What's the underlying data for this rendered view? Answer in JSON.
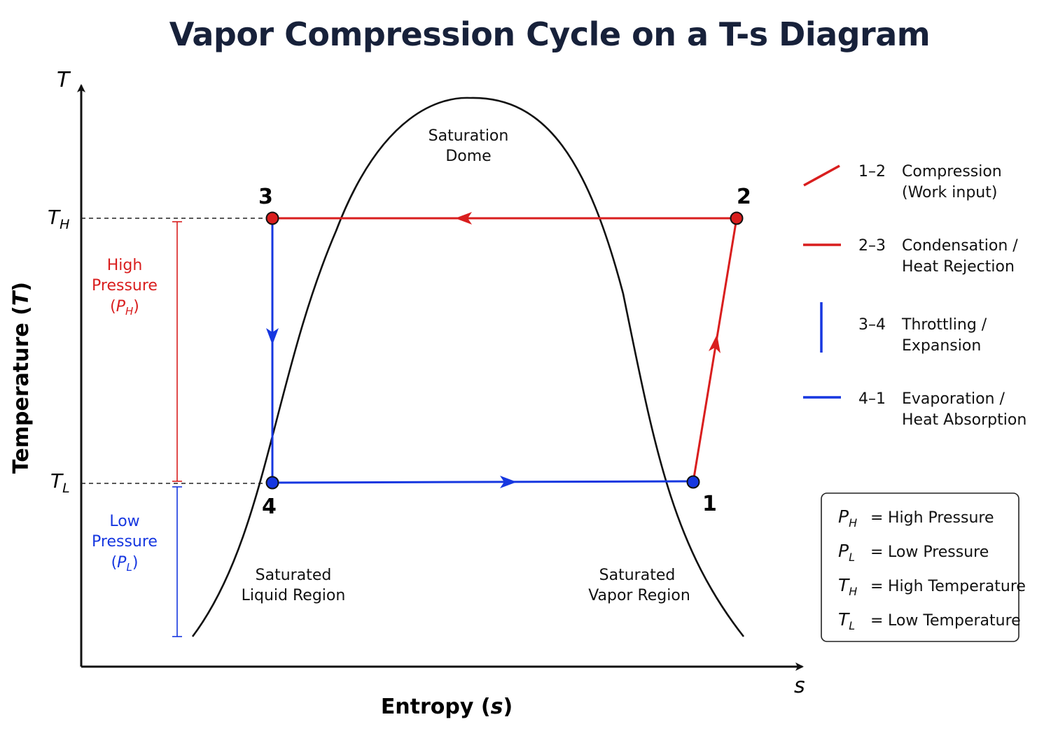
{
  "title": "Vapor Compression Cycle on a T-s Diagram",
  "axes": {
    "y_symbol": "T",
    "x_symbol": "s",
    "y_label": "Temperature",
    "y_label_var": "T",
    "x_label": "Entropy",
    "x_label_var": "s",
    "th_tick": {
      "base": "T",
      "sub": "H"
    },
    "tl_tick": {
      "base": "T",
      "sub": "L"
    }
  },
  "points": {
    "p1": "1",
    "p2": "2",
    "p3": "3",
    "p4": "4"
  },
  "regions": {
    "dome_line1": "Saturation",
    "dome_line2": "Dome",
    "liquid_line1": "Saturated",
    "liquid_line2": "Liquid Region",
    "vapor_line1": "Saturated",
    "vapor_line2": "Vapor Region"
  },
  "pressure": {
    "high_line1": "High",
    "high_line2": "Pressure",
    "high_sym": "P",
    "high_sub": "H",
    "low_line1": "Low",
    "low_line2": "Pressure",
    "low_sym": "P",
    "low_sub": "L"
  },
  "legend": [
    {
      "process": "1–2",
      "line1": "Compression",
      "line2": "(Work input)",
      "color": "#d91e1e"
    },
    {
      "process": "2–3",
      "line1": "Condensation /",
      "line2": "Heat Rejection",
      "color": "#d91e1e"
    },
    {
      "process": "3–4",
      "line1": "Throttling /",
      "line2": "Expansion",
      "color": "#1637e0"
    },
    {
      "process": "4–1",
      "line1": "Evaporation /",
      "line2": "Heat Absorption",
      "color": "#1637e0"
    }
  ],
  "symbols": [
    {
      "base": "P",
      "sub": "H",
      "eq": "=",
      "desc": "High Pressure"
    },
    {
      "base": "P",
      "sub": "L",
      "eq": "=",
      "desc": "Low Pressure"
    },
    {
      "base": "T",
      "sub": "H",
      "eq": "=",
      "desc": "High Temperature"
    },
    {
      "base": "T",
      "sub": "L",
      "eq": "=",
      "desc": "Low Temperature"
    }
  ],
  "colors": {
    "red": "#d91e1e",
    "blue": "#1637e0",
    "axis": "#111111",
    "title": "#17213a"
  }
}
